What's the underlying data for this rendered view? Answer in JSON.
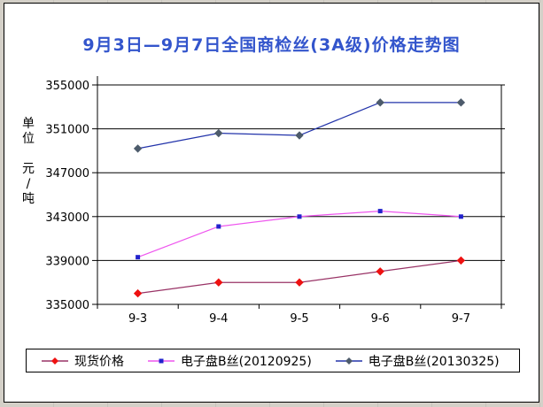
{
  "window": {
    "background_color": "#d4d0c8",
    "frame_border_color": "#000000",
    "chart_background": "#ffffff"
  },
  "chart_data": {
    "type": "line",
    "title": "9月3日—9月7日全国商检丝(3A级)价格走势图",
    "title_color": "#3355cc",
    "ylabel": "单位 元/吨",
    "ylabel_chars": [
      "单",
      "位",
      " ",
      "元",
      "/",
      "吨"
    ],
    "xlabel": "",
    "categories": [
      "9-3",
      "9-4",
      "9-5",
      "9-6",
      "9-7"
    ],
    "y_ticks": [
      355000,
      351000,
      347000,
      343000,
      339000,
      335000
    ],
    "ylim": [
      335000,
      355000
    ],
    "grid": true,
    "grid_color": "#000000",
    "axis_color": "#000000",
    "tick_label_color": "#000000",
    "legend_position": "bottom",
    "series": [
      {
        "name": "现货价格",
        "line_color": "#993366",
        "marker": "diamond",
        "marker_color": "#ee1111",
        "values": [
          336000,
          337000,
          337000,
          338000,
          339000
        ]
      },
      {
        "name": "电子盘B丝(20120925)",
        "line_color": "#ee55ee",
        "marker": "square",
        "marker_color": "#2222cc",
        "values": [
          339300,
          342100,
          343000,
          343500,
          343000
        ]
      },
      {
        "name": "电子盘B丝(20130325)",
        "line_color": "#2233aa",
        "marker": "diamond",
        "marker_color": "#4d5b6b",
        "values": [
          349200,
          350600,
          350400,
          353400,
          353400
        ]
      }
    ]
  }
}
